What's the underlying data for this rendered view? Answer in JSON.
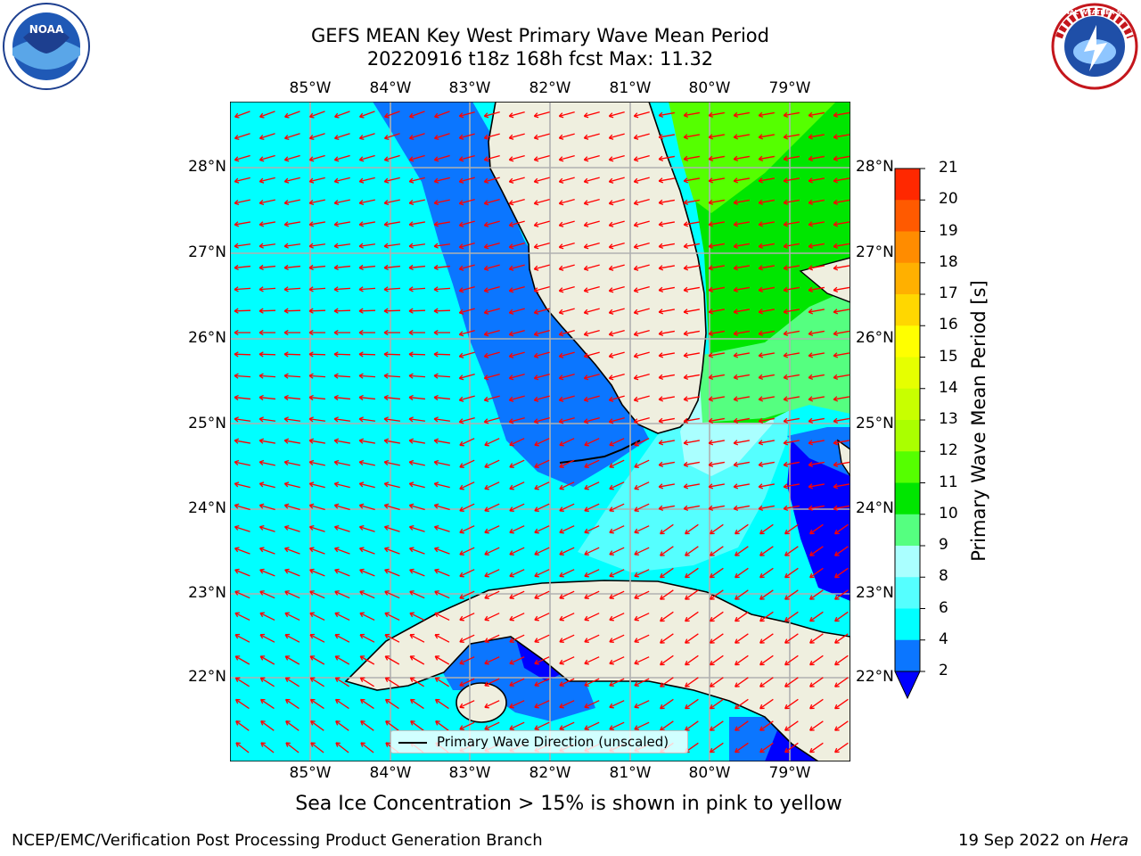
{
  "title": {
    "line1": "GEFS MEAN Key West Primary Wave Mean Period",
    "line2": "20220916 t18z 168h fcst   Max: 11.32"
  },
  "logos": {
    "left": "NOAA",
    "right": "NATIONAL WEATHER SERVICE"
  },
  "map": {
    "lon_ticks": [
      "85°W",
      "84°W",
      "83°W",
      "82°W",
      "81°W",
      "80°W",
      "79°W"
    ],
    "lat_ticks": [
      "28°N",
      "27°N",
      "26°N",
      "25°N",
      "24°N",
      "23°N",
      "22°N"
    ],
    "legend_label": "Primary Wave Direction (unscaled)",
    "arrow_color": "#ff0000",
    "land_color": "#efefdf",
    "grid_color": "#b0b0b0"
  },
  "colorbar": {
    "title": "Primary Wave Mean Period [s]",
    "levels": [
      "2",
      "4",
      "6",
      "8",
      "9",
      "10",
      "11",
      "12",
      "13",
      "14",
      "15",
      "16",
      "17",
      "18",
      "19",
      "20",
      "21"
    ],
    "colors": [
      "#0b76ff",
      "#00ffff",
      "#55ffff",
      "#aaffff",
      "#55ff80",
      "#00e600",
      "#55ff00",
      "#aaff00",
      "#c8ff00",
      "#e6ff00",
      "#ffff00",
      "#ffd700",
      "#ffb000",
      "#ff8c00",
      "#ff5a00",
      "#ff2800"
    ],
    "under_color": "#0000ff"
  },
  "notes": {
    "sea_ice": "Sea Ice Concentration > 15% is shown in pink to yellow",
    "footer_left": "NCEP/EMC/Verification Post Processing Product Generation Branch",
    "footer_date": "19 Sep 2022 on ",
    "footer_host": "Hera"
  }
}
